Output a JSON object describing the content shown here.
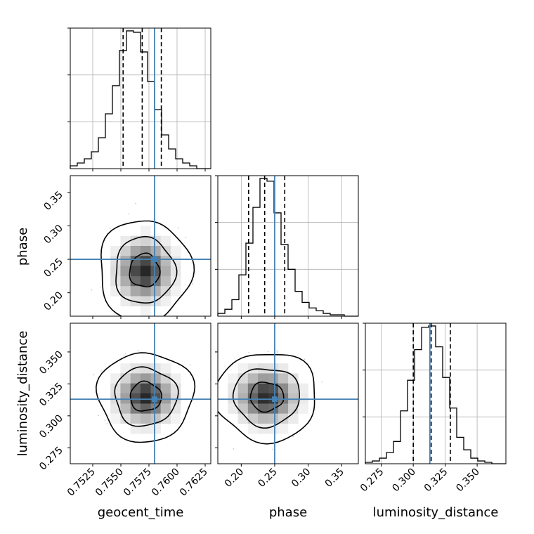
{
  "chart_data": {
    "type": "corner",
    "parameters": [
      {
        "key": "geocent_time",
        "label": "geocent_time",
        "range": [
          0.7505,
          0.763
        ],
        "ticks": [
          0.7525,
          0.755,
          0.7575,
          0.76,
          0.7625
        ],
        "tick_labels": [
          "0.7525",
          "0.7550",
          "0.7575",
          "0.7600",
          "0.7625"
        ],
        "truth": 0.758,
        "quantiles": [
          0.7552,
          0.7569,
          0.7586
        ],
        "hist_edges_start": 0.7505,
        "hist_bin_width": 0.000625,
        "hist_counts": [
          2,
          4,
          7,
          12,
          22,
          39,
          59,
          84,
          98,
          97,
          83,
          62,
          42,
          24,
          14,
          7,
          4,
          2,
          0,
          0
        ]
      },
      {
        "key": "phase",
        "label": "phase",
        "range": [
          0.165,
          0.375
        ],
        "ticks": [
          0.2,
          0.25,
          0.3,
          0.35
        ],
        "tick_labels": [
          "0.20",
          "0.25",
          "0.30",
          "0.35"
        ],
        "truth": 0.25,
        "quantiles": [
          0.211,
          0.235,
          0.265
        ],
        "hist_edges_start": 0.165,
        "hist_bin_width": 0.0105,
        "hist_counts": [
          2,
          5,
          12,
          30,
          53,
          79,
          100,
          98,
          75,
          52,
          34,
          18,
          10,
          6,
          4,
          2,
          1,
          1,
          0,
          0
        ]
      },
      {
        "key": "luminosity_distance",
        "label": "luminosity_distance",
        "range": [
          0.2625,
          0.3725
        ],
        "ticks": [
          0.275,
          0.3,
          0.325,
          0.35
        ],
        "tick_labels": [
          "0.275",
          "0.300",
          "0.325",
          "0.350"
        ],
        "truth": 0.313,
        "quantiles": [
          0.3,
          0.314,
          0.329
        ],
        "hist_edges_start": 0.2625,
        "hist_bin_width": 0.0055,
        "hist_counts": [
          1,
          2,
          4,
          8,
          16,
          38,
          60,
          82,
          98,
          99,
          84,
          62,
          40,
          19,
          10,
          4,
          2,
          1,
          0,
          0
        ]
      }
    ],
    "pair_densities": [
      {
        "x": "geocent_time",
        "y": "phase",
        "center": [
          0.7571,
          0.233
        ],
        "sd": [
          0.00135,
          0.025
        ],
        "contour_levels": [
          0.39,
          0.86,
          0.99
        ],
        "scatter_count": 900
      },
      {
        "x": "geocent_time",
        "y": "luminosity_distance",
        "center": [
          0.7572,
          0.315
        ],
        "sd": [
          0.0014,
          0.0115
        ],
        "contour_levels": [
          0.39,
          0.86,
          0.99
        ],
        "scatter_count": 900
      },
      {
        "x": "phase",
        "y": "luminosity_distance",
        "center": [
          0.238,
          0.315
        ],
        "sd": [
          0.025,
          0.0115
        ],
        "contour_levels": [
          0.39,
          0.86,
          0.99
        ],
        "scatter_count": 900
      }
    ],
    "grid": true,
    "colors": {
      "truth": "#4682b4",
      "hist": "#000000",
      "quantile": "#000000",
      "grid": "#b0b0b0",
      "scatter": "#9e9e9e"
    }
  }
}
